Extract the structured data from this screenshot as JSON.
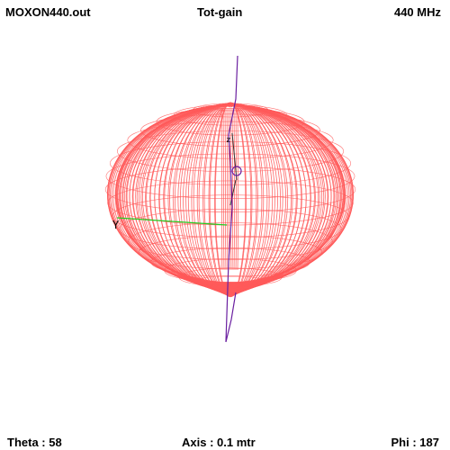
{
  "header": {
    "file_name": "MOXON440.out",
    "plot_type": "Tot-gain",
    "frequency": "440 MHz"
  },
  "footer": {
    "theta_label": "Theta",
    "theta_value": "58",
    "axis_label": "Axis",
    "axis_value": "0.1 mtr",
    "phi_label": "Phi",
    "phi_value": "187"
  },
  "plot": {
    "pattern_color": "#ff5a5a",
    "antenna_color": "#6a1fa0",
    "x_axis_color": "#22cc22",
    "y_axis_color": "#333333",
    "axis_marker": "Y"
  }
}
